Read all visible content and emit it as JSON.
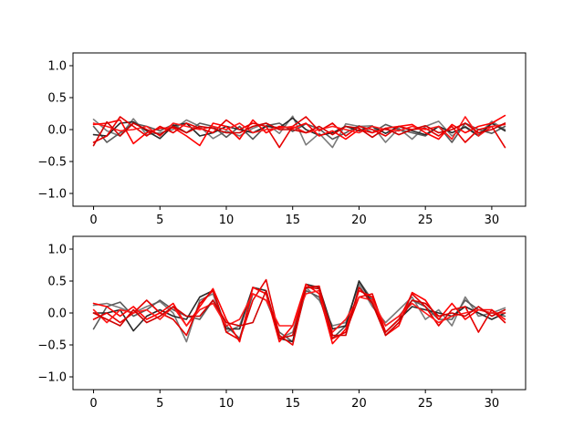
{
  "chart_data": [
    {
      "type": "line",
      "title": "",
      "xlabel": "",
      "ylabel": "",
      "xlim": [
        -1.55,
        32.55
      ],
      "ylim": [
        -1.2,
        1.2
      ],
      "xticks": [
        0,
        5,
        10,
        15,
        20,
        25,
        30
      ],
      "xtick_labels": [
        "0",
        "5",
        "10",
        "15",
        "20",
        "25",
        "30"
      ],
      "yticks": [
        -1.0,
        -0.5,
        0.0,
        0.5,
        1.0
      ],
      "ytick_labels": [
        "−1.0",
        "−0.5",
        "0.0",
        "0.5",
        "1.0"
      ],
      "grid": false,
      "x": [
        0,
        1,
        2,
        3,
        4,
        5,
        6,
        7,
        8,
        9,
        10,
        11,
        12,
        13,
        14,
        15,
        16,
        17,
        18,
        19,
        20,
        21,
        22,
        23,
        24,
        25,
        26,
        27,
        28,
        29,
        30,
        31
      ],
      "series": [
        {
          "color": "#7a7a7a",
          "values": [
            0.16,
            -0.02,
            -0.1,
            0.17,
            -0.08,
            -0.05,
            0.0,
            0.15,
            0.05,
            -0.14,
            -0.02,
            -0.1,
            0.02,
            0.1,
            -0.06,
            0.21,
            -0.24,
            -0.06,
            -0.28,
            0.09,
            0.05,
            0.06,
            -0.2,
            0.02,
            -0.15,
            0.05,
            0.13,
            -0.1,
            0.05,
            -0.08,
            0.13,
            0.0
          ]
        },
        {
          "color": "#5a5a5a",
          "values": [
            0.05,
            -0.2,
            -0.05,
            0.1,
            0.05,
            -0.02,
            0.08,
            -0.05,
            0.1,
            0.05,
            -0.12,
            0.05,
            -0.15,
            0.06,
            0.1,
            -0.03,
            0.09,
            0.01,
            -0.15,
            -0.05,
            0.06,
            -0.05,
            0.08,
            0.0,
            -0.05,
            -0.1,
            0.05,
            -0.2,
            0.1,
            0.0,
            -0.06,
            0.05
          ]
        },
        {
          "color": "#2a2a2a",
          "values": [
            -0.08,
            -0.1,
            0.1,
            0.12,
            -0.02,
            -0.14,
            0.06,
            0.1,
            -0.1,
            -0.05,
            0.05,
            0.0,
            -0.05,
            0.05,
            0.03,
            0.18,
            0.0,
            -0.09,
            -0.05,
            0.05,
            -0.02,
            0.05,
            -0.06,
            0.05,
            -0.02,
            -0.08,
            0.05,
            -0.05,
            0.04,
            -0.1,
            0.1,
            -0.02
          ]
        },
        {
          "color": "#ff0000",
          "values": [
            0.08,
            0.1,
            0.15,
            -0.22,
            -0.05,
            0.02,
            0.03,
            -0.1,
            -0.25,
            0.1,
            0.05,
            -0.15,
            0.15,
            -0.05,
            0.05,
            0.02,
            0.1,
            -0.1,
            -0.02,
            -0.15,
            0.0,
            -0.05,
            0.02,
            0.05,
            0.08,
            -0.05,
            -0.15,
            0.08,
            -0.05,
            0.05,
            0.1,
            0.22
          ]
        },
        {
          "color": "#e60000",
          "values": [
            -0.2,
            -0.1,
            0.2,
            0.05,
            -0.1,
            0.05,
            -0.05,
            0.1,
            0.02,
            -0.05,
            0.15,
            0.0,
            0.1,
            0.05,
            -0.28,
            0.05,
            0.2,
            -0.02,
            0.1,
            -0.1,
            0.05,
            0.0,
            -0.1,
            0.05,
            0.0,
            0.02,
            -0.1,
            0.05,
            -0.2,
            0.0,
            0.05,
            -0.28
          ]
        },
        {
          "color": "#ff1a1a",
          "values": [
            0.1,
            0.05,
            -0.02,
            0.0,
            0.05,
            -0.1,
            0.1,
            0.05,
            0.0,
            0.05,
            0.0,
            0.1,
            -0.05,
            0.0,
            0.02,
            0.05,
            -0.05,
            0.0,
            0.05,
            0.0,
            -0.05,
            0.05,
            0.0,
            -0.02,
            0.05,
            0.0,
            0.05,
            -0.15,
            0.2,
            -0.1,
            0.05,
            0.08
          ]
        },
        {
          "color": "#d00000",
          "values": [
            -0.25,
            0.12,
            -0.1,
            0.1,
            0.0,
            -0.08,
            0.05,
            -0.05,
            0.05,
            0.02,
            -0.05,
            -0.05,
            0.05,
            0.1,
            0.0,
            0.0,
            -0.05,
            0.05,
            -0.08,
            0.05,
            0.02,
            -0.12,
            0.02,
            -0.08,
            0.0,
            0.06,
            -0.05,
            0.0,
            0.1,
            -0.05,
            0.0,
            0.1
          ]
        }
      ]
    },
    {
      "type": "line",
      "title": "",
      "xlabel": "",
      "ylabel": "",
      "xlim": [
        -1.55,
        32.55
      ],
      "ylim": [
        -1.2,
        1.2
      ],
      "xticks": [
        0,
        5,
        10,
        15,
        20,
        25,
        30
      ],
      "xtick_labels": [
        "0",
        "5",
        "10",
        "15",
        "20",
        "25",
        "30"
      ],
      "yticks": [
        -1.0,
        -0.5,
        0.0,
        0.5,
        1.0
      ],
      "ytick_labels": [
        "−1.0",
        "−0.5",
        "0.0",
        "0.5",
        "1.0"
      ],
      "grid": false,
      "x": [
        0,
        1,
        2,
        3,
        4,
        5,
        6,
        7,
        8,
        9,
        10,
        11,
        12,
        13,
        14,
        15,
        16,
        17,
        18,
        19,
        20,
        21,
        22,
        23,
        24,
        25,
        26,
        27,
        28,
        29,
        30,
        31
      ],
      "series": [
        {
          "color": "#7a7a7a",
          "values": [
            0.12,
            0.15,
            0.08,
            0.0,
            0.1,
            0.18,
            0.0,
            -0.45,
            0.2,
            0.3,
            -0.3,
            -0.2,
            0.4,
            0.35,
            -0.4,
            -0.3,
            0.4,
            0.2,
            -0.2,
            -0.15,
            0.45,
            0.1,
            -0.15,
            0.05,
            0.25,
            -0.1,
            0.05,
            -0.2,
            0.25,
            -0.05,
            0.0,
            0.08
          ]
        },
        {
          "color": "#5a5a5a",
          "values": [
            -0.25,
            0.1,
            0.17,
            -0.05,
            0.05,
            0.2,
            0.05,
            -0.05,
            -0.1,
            0.2,
            -0.2,
            -0.4,
            0.3,
            0.2,
            -0.3,
            -0.45,
            0.35,
            0.25,
            -0.4,
            -0.2,
            0.5,
            0.2,
            -0.2,
            -0.05,
            0.2,
            0.1,
            -0.1,
            -0.1,
            0.2,
            0.05,
            0.0,
            -0.05
          ]
        },
        {
          "color": "#2a2a2a",
          "values": [
            0.0,
            0.0,
            0.05,
            -0.28,
            -0.05,
            0.05,
            -0.05,
            -0.1,
            0.25,
            0.35,
            -0.25,
            -0.25,
            0.4,
            0.35,
            -0.4,
            -0.45,
            0.45,
            0.4,
            -0.25,
            -0.2,
            0.5,
            0.15,
            -0.3,
            -0.1,
            0.1,
            0.05,
            0.0,
            -0.05,
            0.1,
            0.0,
            -0.1,
            0.0
          ]
        },
        {
          "color": "#ff0000",
          "values": [
            0.15,
            0.1,
            -0.05,
            0.1,
            -0.1,
            0.0,
            0.15,
            -0.2,
            0.1,
            0.38,
            -0.1,
            -0.45,
            0.4,
            0.3,
            -0.45,
            -0.2,
            0.45,
            0.3,
            -0.48,
            -0.25,
            0.35,
            0.25,
            -0.35,
            -0.2,
            0.32,
            0.2,
            -0.1,
            0.15,
            -0.1,
            0.05,
            0.05,
            -0.1
          ]
        },
        {
          "color": "#e60000",
          "values": [
            -0.1,
            0.0,
            -0.15,
            0.0,
            0.2,
            0.0,
            -0.1,
            -0.35,
            0.15,
            0.35,
            -0.3,
            -0.42,
            0.2,
            0.52,
            -0.35,
            -0.5,
            0.4,
            0.42,
            -0.4,
            -0.3,
            0.25,
            0.3,
            -0.3,
            -0.1,
            0.3,
            0.1,
            -0.2,
            0.05,
            0.1,
            -0.3,
            0.05,
            -0.15
          ]
        },
        {
          "color": "#ff1a1a",
          "values": [
            0.05,
            -0.15,
            0.05,
            0.0,
            0.05,
            -0.1,
            0.1,
            -0.2,
            0.05,
            0.15,
            -0.2,
            -0.1,
            0.3,
            0.2,
            -0.2,
            -0.2,
            0.3,
            0.35,
            -0.3,
            -0.1,
            0.25,
            0.2,
            -0.2,
            -0.05,
            0.15,
            0.0,
            -0.15,
            -0.05,
            0.0,
            0.05,
            0.0,
            0.0
          ]
        },
        {
          "color": "#d00000",
          "values": [
            0.0,
            -0.1,
            -0.2,
            0.05,
            -0.15,
            -0.05,
            0.1,
            -0.05,
            -0.05,
            0.2,
            -0.15,
            -0.2,
            -0.15,
            0.35,
            -0.4,
            -0.35,
            0.4,
            0.38,
            -0.35,
            -0.35,
            0.4,
            0.15,
            -0.35,
            -0.15,
            0.2,
            0.15,
            -0.05,
            0.0,
            -0.05,
            0.1,
            -0.05,
            0.05
          ]
        }
      ]
    }
  ]
}
